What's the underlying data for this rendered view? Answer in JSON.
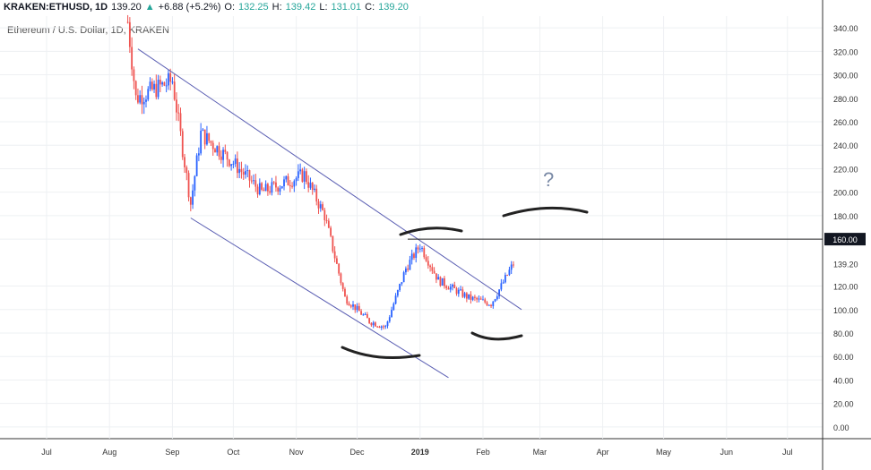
{
  "header": {
    "symbol": "KRAKEN:ETHUSD, 1D",
    "last": "139.20",
    "arrow": "▲",
    "change": "+6.88 (+5.2%)",
    "o_label": "O:",
    "o_val": "132.25",
    "h_label": "H:",
    "h_val": "139.42",
    "l_label": "L:",
    "l_val": "131.01",
    "c_label": "C:",
    "c_val": "139.20"
  },
  "subtitle": "Ethereum / U.S. Dollar, 1D, KRAKEN",
  "colors": {
    "up": "#2962ff",
    "down": "#ef5350",
    "trend": "#5b5fb3",
    "grid": "#eef0f3",
    "axis": "#333333",
    "hand": "#222222"
  },
  "chart_data": {
    "type": "candlestick",
    "y_axis": {
      "range": [
        -10,
        350
      ],
      "ticks": [
        "340.00",
        "320.00",
        "300.00",
        "280.00",
        "260.00",
        "240.00",
        "220.00",
        "200.00",
        "180.00",
        "160.00",
        "139.20",
        "120.00",
        "100.00",
        "80.00",
        "60.00",
        "40.00",
        "20.00",
        "0.00"
      ]
    },
    "x_axis": {
      "labels": [
        "Jul",
        "Aug",
        "Sep",
        "Oct",
        "Nov",
        "Dec",
        "2019",
        "Feb",
        "Mar",
        "Apr",
        "May",
        "Jun",
        "Jul"
      ]
    },
    "price_labels": {
      "horizontal_line": "160.00",
      "last_price": "139.20"
    },
    "annotation_text": "?",
    "key_points": [
      {
        "date": "2018-08-10",
        "close": 345
      },
      {
        "date": "2018-08-14",
        "close": 280
      },
      {
        "date": "2018-09-01",
        "close": 295
      },
      {
        "date": "2018-09-10",
        "close": 190
      },
      {
        "date": "2018-09-15",
        "close": 250
      },
      {
        "date": "2018-10-01",
        "close": 225
      },
      {
        "date": "2018-10-15",
        "close": 200
      },
      {
        "date": "2018-11-05",
        "close": 215
      },
      {
        "date": "2018-11-15",
        "close": 180
      },
      {
        "date": "2018-11-25",
        "close": 110
      },
      {
        "date": "2018-12-07",
        "close": 90
      },
      {
        "date": "2018-12-15",
        "close": 85
      },
      {
        "date": "2018-12-25",
        "close": 135
      },
      {
        "date": "2019-01-01",
        "close": 155
      },
      {
        "date": "2019-01-10",
        "close": 125
      },
      {
        "date": "2019-01-25",
        "close": 110
      },
      {
        "date": "2019-02-05",
        "close": 105
      },
      {
        "date": "2019-02-10",
        "close": 120
      },
      {
        "date": "2019-02-16",
        "close": 139.2
      }
    ],
    "trendlines": [
      {
        "name": "upper channel",
        "from": {
          "date": "2018-08-15",
          "price": 322
        },
        "to": {
          "date": "2019-02-20",
          "price": 100
        }
      },
      {
        "name": "lower channel",
        "from": {
          "date": "2018-09-10",
          "price": 178
        },
        "to": {
          "date": "2019-01-15",
          "price": 42
        }
      }
    ],
    "hline": {
      "price": 160
    }
  }
}
